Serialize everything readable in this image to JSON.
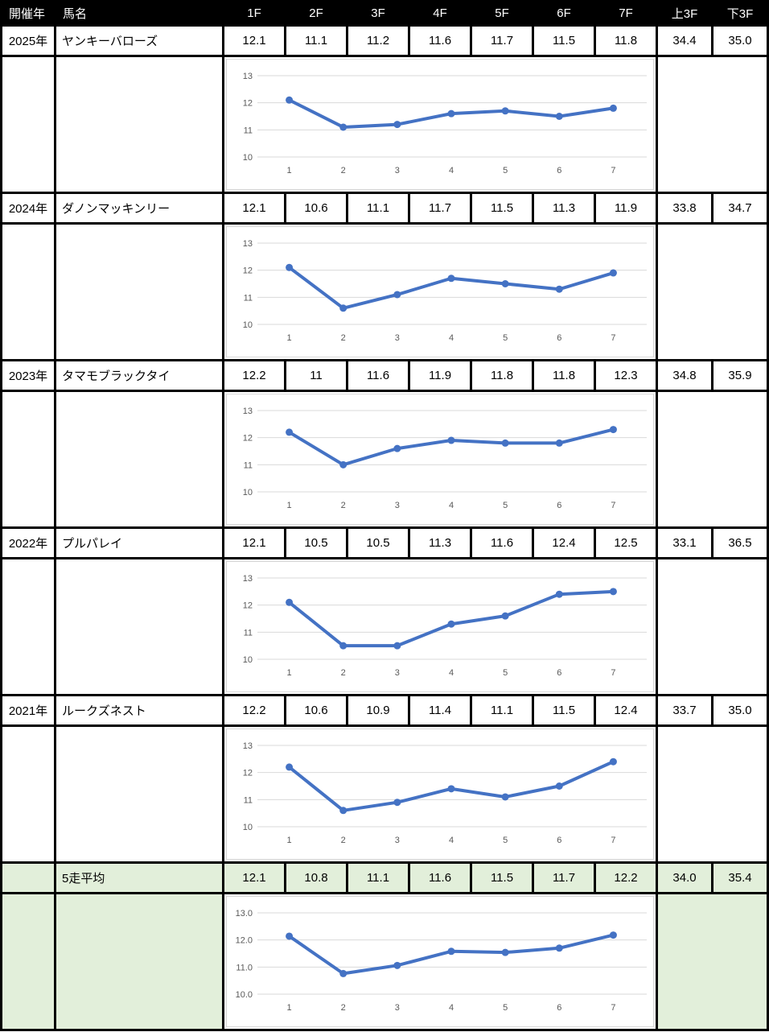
{
  "colors": {
    "line": "#4472C4",
    "gridline": "#D9D9D9",
    "tick_text": "#595959",
    "header_bg": "#000000",
    "header_text": "#FFFFFF",
    "average_bg": "#E2EFDA",
    "border": "#000000"
  },
  "table": {
    "header": [
      "開催年",
      "馬名",
      "1F",
      "2F",
      "3F",
      "4F",
      "5F",
      "6F",
      "7F",
      "上3F",
      "下3F"
    ],
    "rows": [
      {
        "year": "2025年",
        "name": "ヤンキーバローズ",
        "laps": [
          "12.1",
          "11.1",
          "11.2",
          "11.6",
          "11.7",
          "11.5",
          "11.8"
        ],
        "up3f": "34.4",
        "down3f": "35.0"
      },
      {
        "year": "2024年",
        "name": "ダノンマッキンリー",
        "laps": [
          "12.1",
          "10.6",
          "11.1",
          "11.7",
          "11.5",
          "11.3",
          "11.9"
        ],
        "up3f": "33.8",
        "down3f": "34.7"
      },
      {
        "year": "2023年",
        "name": "タマモブラックタイ",
        "laps": [
          "12.2",
          "11",
          "11.6",
          "11.9",
          "11.8",
          "11.8",
          "12.3"
        ],
        "up3f": "34.8",
        "down3f": "35.9"
      },
      {
        "year": "2022年",
        "name": "プルパレイ",
        "laps": [
          "12.1",
          "10.5",
          "10.5",
          "11.3",
          "11.6",
          "12.4",
          "12.5"
        ],
        "up3f": "33.1",
        "down3f": "36.5"
      },
      {
        "year": "2021年",
        "name": "ルークズネスト",
        "laps": [
          "12.2",
          "10.6",
          "10.9",
          "11.4",
          "11.1",
          "11.5",
          "12.4"
        ],
        "up3f": "33.7",
        "down3f": "35.0"
      }
    ],
    "average": {
      "label": "5走平均",
      "laps": [
        "12.1",
        "10.8",
        "11.1",
        "11.6",
        "11.5",
        "11.7",
        "12.2"
      ],
      "up3f": "34.0",
      "down3f": "35.4"
    }
  },
  "chart_data": [
    {
      "type": "line",
      "series_label": "2025年 ヤンキーバローズ",
      "x": [
        1,
        2,
        3,
        4,
        5,
        6,
        7
      ],
      "values": [
        12.1,
        11.1,
        11.2,
        11.6,
        11.7,
        11.5,
        11.8
      ],
      "xtick_labels": [
        "1",
        "2",
        "3",
        "4",
        "5",
        "6",
        "7"
      ],
      "yticks": [
        13,
        12,
        11,
        10
      ],
      "ytick_labels": [
        "13",
        "12",
        "11",
        "10"
      ],
      "ylim": [
        10,
        13
      ],
      "grid": true,
      "legend": false
    },
    {
      "type": "line",
      "series_label": "2024年 ダノンマッキンリー",
      "x": [
        1,
        2,
        3,
        4,
        5,
        6,
        7
      ],
      "values": [
        12.1,
        10.6,
        11.1,
        11.7,
        11.5,
        11.3,
        11.9
      ],
      "xtick_labels": [
        "1",
        "2",
        "3",
        "4",
        "5",
        "6",
        "7"
      ],
      "yticks": [
        13,
        12,
        11,
        10
      ],
      "ytick_labels": [
        "13",
        "12",
        "11",
        "10"
      ],
      "ylim": [
        10,
        13
      ],
      "grid": true,
      "legend": false
    },
    {
      "type": "line",
      "series_label": "2023年 タマモブラックタイ",
      "x": [
        1,
        2,
        3,
        4,
        5,
        6,
        7
      ],
      "values": [
        12.2,
        11.0,
        11.6,
        11.9,
        11.8,
        11.8,
        12.3
      ],
      "xtick_labels": [
        "1",
        "2",
        "3",
        "4",
        "5",
        "6",
        "7"
      ],
      "yticks": [
        13,
        12,
        11,
        10
      ],
      "ytick_labels": [
        "13",
        "12",
        "11",
        "10"
      ],
      "ylim": [
        10,
        13
      ],
      "grid": true,
      "legend": false
    },
    {
      "type": "line",
      "series_label": "2022年 プルパレイ",
      "x": [
        1,
        2,
        3,
        4,
        5,
        6,
        7
      ],
      "values": [
        12.1,
        10.5,
        10.5,
        11.3,
        11.6,
        12.4,
        12.5
      ],
      "xtick_labels": [
        "1",
        "2",
        "3",
        "4",
        "5",
        "6",
        "7"
      ],
      "yticks": [
        13,
        12,
        11,
        10
      ],
      "ytick_labels": [
        "13",
        "12",
        "11",
        "10"
      ],
      "ylim": [
        10,
        13
      ],
      "grid": true,
      "legend": false
    },
    {
      "type": "line",
      "series_label": "2021年 ルークズネスト",
      "x": [
        1,
        2,
        3,
        4,
        5,
        6,
        7
      ],
      "values": [
        12.2,
        10.6,
        10.9,
        11.4,
        11.1,
        11.5,
        12.4
      ],
      "xtick_labels": [
        "1",
        "2",
        "3",
        "4",
        "5",
        "6",
        "7"
      ],
      "yticks": [
        13,
        12,
        11,
        10
      ],
      "ytick_labels": [
        "13",
        "12",
        "11",
        "10"
      ],
      "ylim": [
        10,
        13
      ],
      "grid": true,
      "legend": false
    },
    {
      "type": "line",
      "series_label": "5走平均",
      "x": [
        1,
        2,
        3,
        4,
        5,
        6,
        7
      ],
      "values": [
        12.14,
        10.76,
        11.06,
        11.58,
        11.54,
        11.7,
        12.18
      ],
      "xtick_labels": [
        "1",
        "2",
        "3",
        "4",
        "5",
        "6",
        "7"
      ],
      "yticks": [
        13,
        12,
        11,
        10
      ],
      "ytick_labels": [
        "13.0",
        "12.0",
        "11.0",
        "10.0"
      ],
      "ylim": [
        10,
        13
      ],
      "grid": true,
      "legend": false
    }
  ]
}
